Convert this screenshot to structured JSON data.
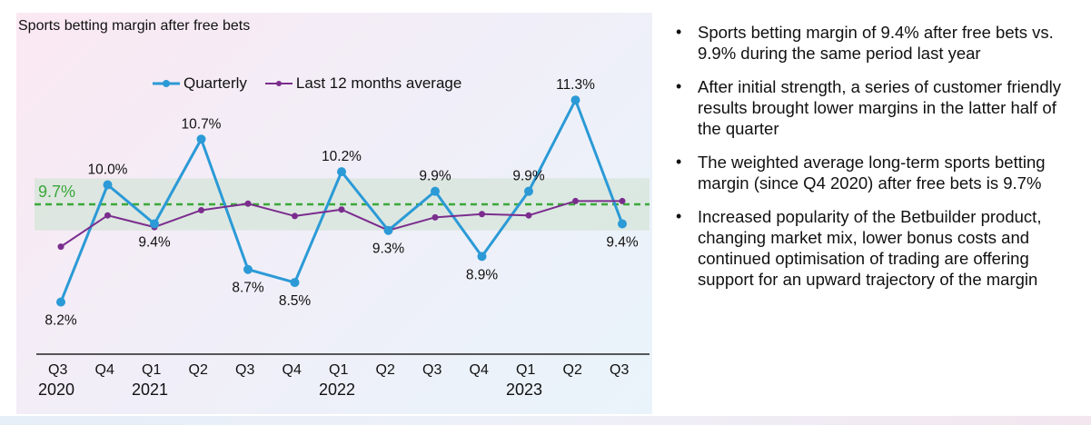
{
  "chart_data": {
    "type": "line",
    "title": "Sports betting margin after free bets",
    "categories": [
      "Q3",
      "Q4",
      "Q1",
      "Q2",
      "Q3",
      "Q4",
      "Q1",
      "Q2",
      "Q3",
      "Q4",
      "Q1",
      "Q2",
      "Q3"
    ],
    "year_labels": [
      "2020",
      "2021",
      "2022",
      "2023"
    ],
    "series": [
      {
        "name": "Quarterly",
        "color": "#2b9ad6",
        "values": [
          8.2,
          10.0,
          9.4,
          10.7,
          8.7,
          8.5,
          10.2,
          9.3,
          9.9,
          8.9,
          9.9,
          11.3,
          9.4
        ],
        "data_labels": [
          "8.2%",
          "10.0%",
          "9.4%",
          "10.7%",
          "8.7%",
          "8.5%",
          "10.2%",
          "9.3%",
          "9.9%",
          "8.9%",
          "9.9%",
          "11.3%",
          "9.4%"
        ]
      },
      {
        "name": "Last 12 months average",
        "color": "#7b2d8e",
        "values": [
          9.05,
          9.53,
          9.35,
          9.61,
          9.71,
          9.52,
          9.62,
          9.3,
          9.5,
          9.55,
          9.53,
          9.75,
          9.75
        ]
      }
    ],
    "reference_line": {
      "value": 9.7,
      "label": "9.7%",
      "color": "#3aa83a"
    },
    "band": [
      9.3,
      10.1
    ],
    "ylim": [
      7.4,
      12.0
    ],
    "grid": false,
    "legend": "top-center"
  },
  "bullets": [
    "Sports betting margin of 9.4% after free bets vs. 9.9% during the same period last year",
    "After initial strength, a series of customer friendly results brought lower margins in the latter half of the quarter",
    "The weighted average long-term sports betting margin (since Q4 2020) after free bets is 9.7%",
    "Increased popularity of the Betbuilder product, changing market mix, lower bonus costs and continued optimisation of trading are offering support for an upward trajectory of the margin"
  ]
}
